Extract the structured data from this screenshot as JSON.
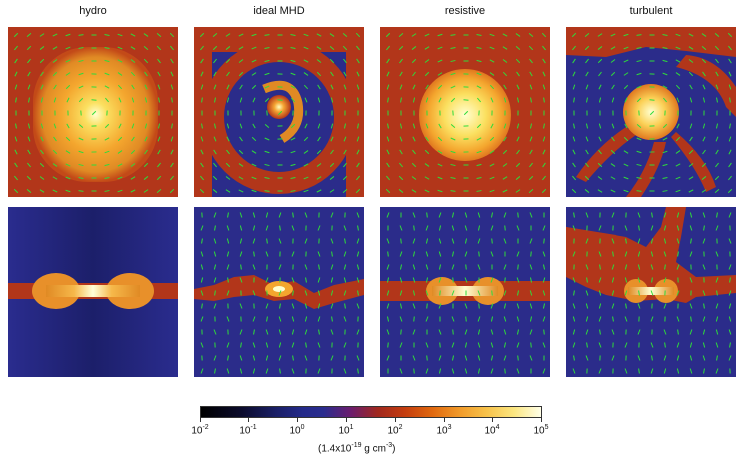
{
  "columns": [
    {
      "id": "hydro",
      "title": "hydro"
    },
    {
      "id": "ideal-mhd",
      "title": "ideal MHD"
    },
    {
      "id": "resistive",
      "title": "resistive"
    },
    {
      "id": "turbulent",
      "title": "turbulent"
    }
  ],
  "colorbar": {
    "ticks": [
      {
        "base": "10",
        "exp": "-2"
      },
      {
        "base": "10",
        "exp": "-1"
      },
      {
        "base": "10",
        "exp": "0"
      },
      {
        "base": "10",
        "exp": "1"
      },
      {
        "base": "10",
        "exp": "2"
      },
      {
        "base": "10",
        "exp": "3"
      },
      {
        "base": "10",
        "exp": "4"
      },
      {
        "base": "10",
        "exp": "5"
      }
    ],
    "unit_prefix": "(1.4x10",
    "unit_exp": "-19",
    "unit_mid": " g cm",
    "unit_exp2": "-3",
    "unit_suffix": ")"
  },
  "colors": {
    "background_blue": "#2b2c8a",
    "ambient_red": "#b2361a",
    "vector_green": "#2edc3a",
    "core_yellow": "#ffffb0"
  }
}
